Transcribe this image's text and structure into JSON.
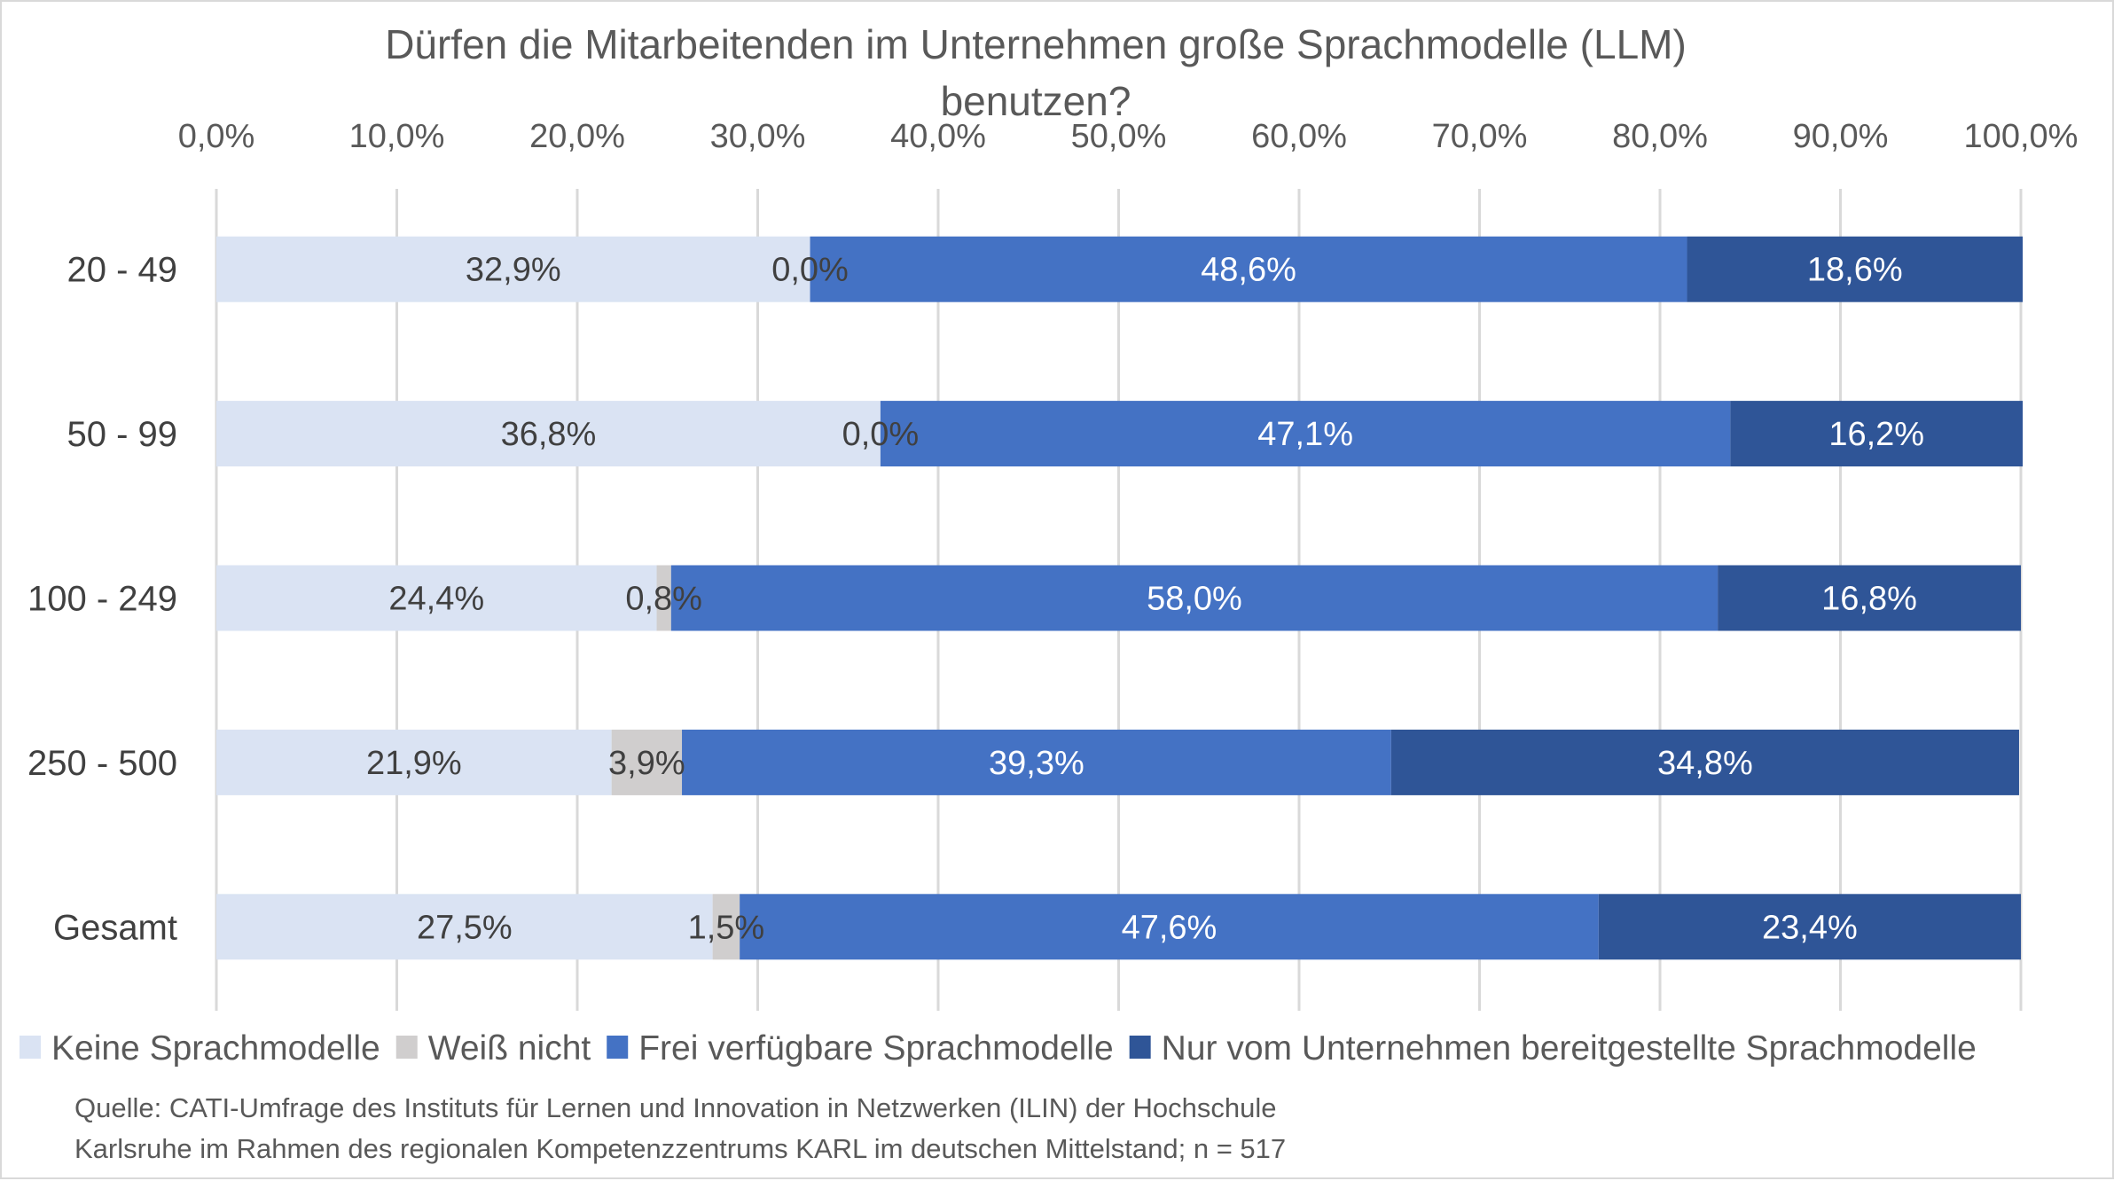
{
  "chart_data": {
    "type": "bar",
    "orientation": "horizontal",
    "stacked": true,
    "title": "Dürfen die Mitarbeitenden im Unternehmen große Sprachmodelle (LLM) benutzen?",
    "title_lines": [
      "Dürfen die Mitarbeitenden im Unternehmen große Sprachmodelle (LLM)",
      "benutzen?"
    ],
    "categories": [
      "20 - 49",
      "50 - 99",
      "100 - 249",
      "250 - 500",
      "Gesamt"
    ],
    "xlim": [
      0,
      100
    ],
    "x_ticks": [
      "0,0%",
      "10,0%",
      "20,0%",
      "30,0%",
      "40,0%",
      "50,0%",
      "60,0%",
      "70,0%",
      "80,0%",
      "90,0%",
      "100,0%"
    ],
    "x_axis_position": "top",
    "grid": true,
    "legend_position": "bottom",
    "series": [
      {
        "name": "Keine Sprachmodelle",
        "color": "#dae3f3",
        "label_color": "#404040",
        "values": [
          32.9,
          36.8,
          24.4,
          21.9,
          27.5
        ],
        "labels": [
          "32,9%",
          "36,8%",
          "24,4%",
          "21,9%",
          "27,5%"
        ]
      },
      {
        "name": "Weiß nicht",
        "color": "#d0cece",
        "label_color": "#404040",
        "values": [
          0.0,
          0.0,
          0.8,
          3.9,
          1.5
        ],
        "labels": [
          "0,0%",
          "0,0%",
          "0,8%",
          "3,9%",
          "1,5%"
        ]
      },
      {
        "name": "Frei verfügbare Sprachmodelle",
        "color": "#4472c4",
        "label_color": "#ffffff",
        "values": [
          48.6,
          47.1,
          58.0,
          39.3,
          47.6
        ],
        "labels": [
          "48,6%",
          "47,1%",
          "58,0%",
          "39,3%",
          "47,6%"
        ]
      },
      {
        "name": "Nur vom Unternehmen bereitgestellte Sprachmodelle",
        "color": "#2f5597",
        "label_color": "#ffffff",
        "values": [
          18.6,
          16.2,
          16.8,
          34.8,
          23.4
        ],
        "labels": [
          "18,6%",
          "16,2%",
          "16,8%",
          "34,8%",
          "23,4%"
        ]
      }
    ],
    "source_lines": [
      "Quelle: CATI-Umfrage des Instituts für Lernen und Innovation in Netzwerken (ILIN) der Hochschule",
      "Karlsruhe im Rahmen des regionalen Kompetenzzentrums KARL im deutschen Mittelstand; n = 517"
    ]
  }
}
